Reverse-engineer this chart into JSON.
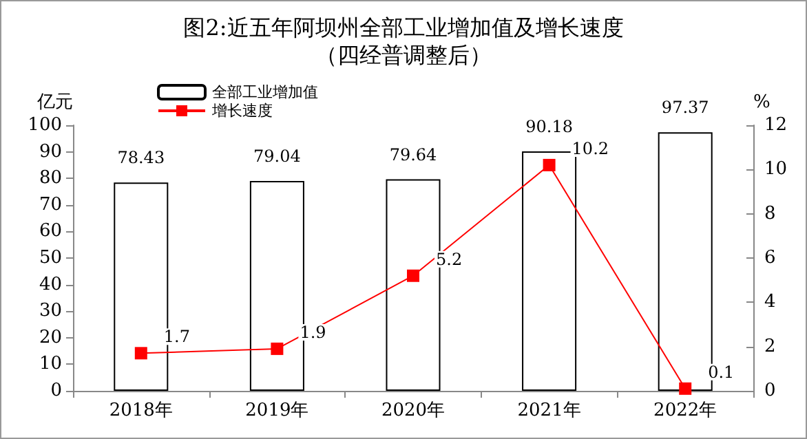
{
  "chart_data": {
    "type": "bar",
    "title": "图2:近五年阿坝州全部工业增加值及增长速度",
    "subtitle": "（四经普调整后）",
    "ylabel": "亿元",
    "y2label": "%",
    "categories": [
      "2018年",
      "2019年",
      "2020年",
      "2021年",
      "2022年"
    ],
    "series": [
      {
        "name": "全部工业增加值",
        "color": "#ffffff",
        "values": [
          78.43,
          79.04,
          79.64,
          90.18,
          97.37
        ]
      },
      {
        "name": "增长速度",
        "type": "line",
        "axis": "y2",
        "color": "#ff0000",
        "marker": "square",
        "values": [
          1.7,
          1.9,
          5.2,
          10.2,
          0.1
        ]
      }
    ],
    "ylim": [
      0,
      100
    ],
    "yticks": [
      0,
      10,
      20,
      30,
      40,
      50,
      60,
      70,
      80,
      90,
      100
    ],
    "y2lim": [
      0,
      12
    ],
    "y2ticks": [
      0,
      2,
      4,
      6,
      8,
      10,
      12
    ],
    "data_labels": true,
    "grid": false,
    "legend": "top left"
  }
}
